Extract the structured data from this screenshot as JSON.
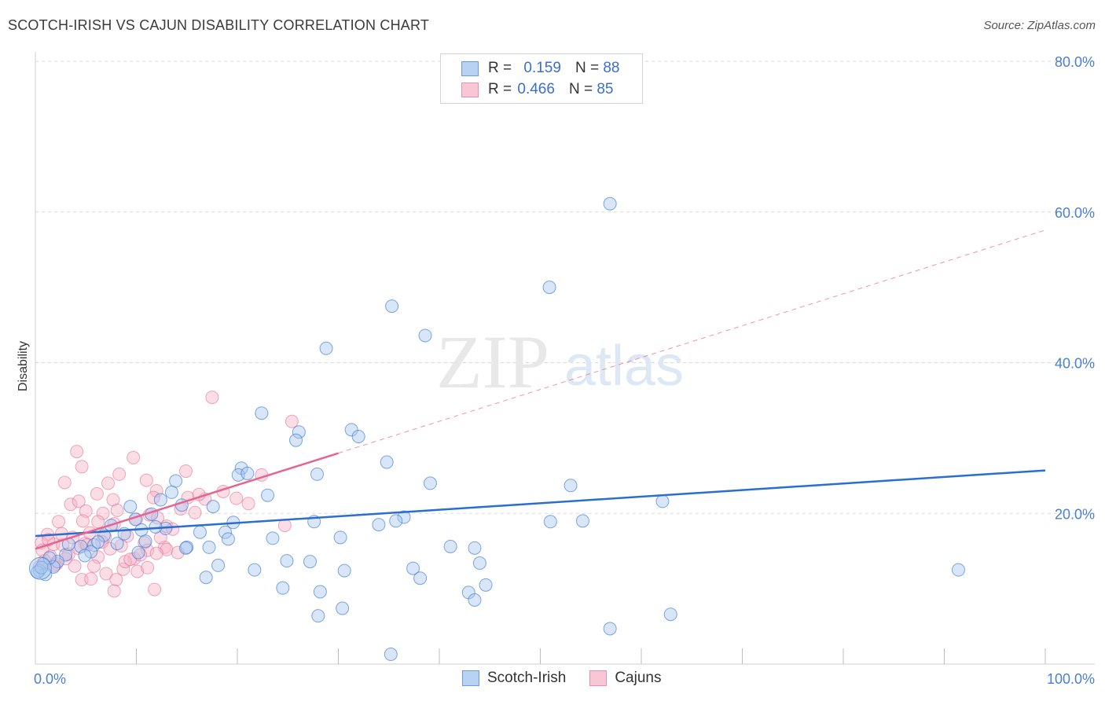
{
  "header": {
    "title": "SCOTCH-IRISH VS CAJUN DISABILITY CORRELATION CHART",
    "source": "Source: ZipAtlas.com"
  },
  "colors": {
    "blue": "#2a6fd0",
    "blue_fill": "#a8c8f0",
    "pink": "#e8648e",
    "pink_fill": "#f6b4c8",
    "grid": "#dddddd",
    "tick_text": "#4a7fd1"
  },
  "legend": {
    "rows": [
      {
        "r_label": "R =",
        "r_value": "0.159",
        "n_label": "N =",
        "n_value": "88"
      },
      {
        "r_label": "R =",
        "r_value": "0.466",
        "n_label": "N =",
        "n_value": "85"
      }
    ]
  },
  "bottom_legend": [
    "Scotch-Irish",
    "Cajuns"
  ],
  "watermark": {
    "zip": "ZIP",
    "atlas": "atlas"
  },
  "chart_data": {
    "type": "scatter",
    "title": "SCOTCH-IRISH VS CAJUN DISABILITY CORRELATION CHART",
    "xlabel": "",
    "ylabel": "Disability",
    "xlim": [
      0,
      100
    ],
    "ylim": [
      0,
      80
    ],
    "x_tick_labels": [
      "0.0%",
      "100.0%"
    ],
    "y_ticks": [
      20,
      40,
      60,
      80
    ],
    "y_tick_labels": [
      "20.0%",
      "40.0%",
      "60.0%",
      "80.0%"
    ],
    "grid": true,
    "legend": "top-center",
    "series": [
      {
        "name": "Scotch-Irish",
        "R": 0.159,
        "N": 88,
        "trend": {
          "x0": 0,
          "y0": 17.0,
          "x1": 100,
          "y1": 25.7,
          "dashed_from": null
        },
        "points": [
          [
            56.9,
            61.1
          ],
          [
            50.9,
            50.0
          ],
          [
            35.3,
            47.5
          ],
          [
            38.6,
            43.6
          ],
          [
            28.8,
            41.9
          ],
          [
            22.4,
            33.3
          ],
          [
            31.3,
            31.1
          ],
          [
            26.1,
            30.8
          ],
          [
            32.0,
            30.2
          ],
          [
            25.8,
            29.7
          ],
          [
            34.8,
            26.8
          ],
          [
            20.4,
            26.0
          ],
          [
            20.1,
            25.1
          ],
          [
            21.0,
            25.3
          ],
          [
            27.9,
            25.2
          ],
          [
            13.9,
            24.3
          ],
          [
            39.1,
            24.0
          ],
          [
            53.0,
            23.7
          ],
          [
            13.5,
            22.8
          ],
          [
            23.0,
            22.4
          ],
          [
            12.4,
            21.8
          ],
          [
            62.1,
            21.6
          ],
          [
            14.5,
            21.1
          ],
          [
            9.4,
            20.9
          ],
          [
            17.6,
            20.9
          ],
          [
            11.5,
            19.9
          ],
          [
            9.9,
            19.2
          ],
          [
            36.5,
            19.5
          ],
          [
            35.7,
            19.0
          ],
          [
            27.6,
            18.9
          ],
          [
            19.6,
            18.8
          ],
          [
            51.0,
            18.9
          ],
          [
            54.2,
            19.0
          ],
          [
            34.0,
            18.5
          ],
          [
            7.5,
            18.4
          ],
          [
            12.9,
            18.0
          ],
          [
            10.5,
            17.8
          ],
          [
            16.3,
            17.5
          ],
          [
            18.8,
            17.5
          ],
          [
            6.8,
            17.1
          ],
          [
            23.5,
            16.7
          ],
          [
            30.2,
            16.8
          ],
          [
            19.1,
            16.6
          ],
          [
            10.9,
            16.3
          ],
          [
            8.1,
            16.0
          ],
          [
            5.8,
            15.8
          ],
          [
            4.5,
            15.6
          ],
          [
            17.2,
            15.5
          ],
          [
            15.0,
            15.5
          ],
          [
            14.9,
            15.4
          ],
          [
            41.1,
            15.6
          ],
          [
            43.5,
            15.4
          ],
          [
            5.5,
            14.9
          ],
          [
            10.2,
            14.8
          ],
          [
            3.0,
            14.5
          ],
          [
            4.9,
            14.4
          ],
          [
            24.9,
            13.7
          ],
          [
            27.2,
            13.6
          ],
          [
            44.0,
            13.4
          ],
          [
            2.2,
            13.6
          ],
          [
            0.8,
            13.3
          ],
          [
            18.1,
            13.1
          ],
          [
            1.8,
            12.9
          ],
          [
            37.4,
            12.7
          ],
          [
            30.6,
            12.4
          ],
          [
            21.7,
            12.5
          ],
          [
            0.4,
            12.4
          ],
          [
            91.4,
            12.5
          ],
          [
            38.1,
            11.4
          ],
          [
            1.0,
            11.9
          ],
          [
            16.9,
            11.5
          ],
          [
            44.6,
            10.5
          ],
          [
            24.5,
            10.1
          ],
          [
            28.2,
            9.6
          ],
          [
            42.9,
            9.5
          ],
          [
            43.5,
            8.5
          ],
          [
            30.4,
            7.4
          ],
          [
            28.0,
            6.4
          ],
          [
            62.9,
            6.6
          ],
          [
            56.9,
            4.7
          ],
          [
            35.2,
            1.3
          ],
          [
            0.2,
            12.2
          ],
          [
            0.6,
            12.8
          ],
          [
            1.4,
            14.1
          ],
          [
            3.3,
            15.9
          ],
          [
            6.2,
            16.2
          ],
          [
            8.8,
            17.3
          ],
          [
            11.9,
            18.2
          ]
        ]
      },
      {
        "name": "Cajuns",
        "R": 0.466,
        "N": 85,
        "trend": {
          "x0": 0,
          "y0": 15.3,
          "x1": 100,
          "y1": 57.6,
          "solid_until_x": 30
        },
        "points": [
          [
            17.5,
            35.4
          ],
          [
            25.4,
            32.2
          ],
          [
            4.1,
            28.2
          ],
          [
            9.7,
            27.4
          ],
          [
            4.6,
            26.2
          ],
          [
            8.3,
            25.2
          ],
          [
            14.9,
            25.6
          ],
          [
            11.0,
            24.4
          ],
          [
            22.4,
            25.1
          ],
          [
            2.9,
            24.1
          ],
          [
            7.2,
            24.0
          ],
          [
            12.0,
            23.0
          ],
          [
            6.1,
            22.6
          ],
          [
            15.1,
            22.1
          ],
          [
            11.7,
            22.1
          ],
          [
            3.5,
            21.2
          ],
          [
            4.3,
            21.6
          ],
          [
            7.7,
            21.8
          ],
          [
            16.8,
            21.9
          ],
          [
            8.1,
            20.4
          ],
          [
            6.7,
            20.0
          ],
          [
            5.0,
            20.3
          ],
          [
            11.3,
            19.8
          ],
          [
            10.0,
            19.2
          ],
          [
            4.7,
            19.0
          ],
          [
            12.1,
            19.4
          ],
          [
            2.3,
            18.9
          ],
          [
            6.2,
            18.9
          ],
          [
            13.0,
            18.3
          ],
          [
            7.8,
            18.6
          ],
          [
            24.7,
            18.4
          ],
          [
            1.2,
            17.2
          ],
          [
            5.4,
            17.4
          ],
          [
            9.1,
            17.0
          ],
          [
            3.7,
            16.8
          ],
          [
            6.9,
            16.9
          ],
          [
            10.8,
            16.1
          ],
          [
            0.6,
            16.1
          ],
          [
            1.8,
            15.9
          ],
          [
            4.9,
            16.0
          ],
          [
            2.7,
            15.8
          ],
          [
            8.5,
            15.7
          ],
          [
            12.8,
            15.5
          ],
          [
            13.0,
            15.2
          ],
          [
            11.1,
            15.1
          ],
          [
            3.3,
            14.6
          ],
          [
            1.5,
            14.3
          ],
          [
            6.2,
            14.2
          ],
          [
            9.8,
            14.0
          ],
          [
            14.1,
            14.8
          ],
          [
            0.9,
            13.7
          ],
          [
            2.1,
            13.3
          ],
          [
            5.8,
            13.0
          ],
          [
            8.7,
            12.6
          ],
          [
            0.4,
            12.9
          ],
          [
            3.9,
            13.0
          ],
          [
            7.0,
            12.0
          ],
          [
            10.1,
            12.3
          ],
          [
            11.1,
            12.8
          ],
          [
            12.0,
            14.7
          ],
          [
            4.6,
            11.2
          ],
          [
            5.5,
            11.3
          ],
          [
            8.0,
            11.2
          ],
          [
            7.8,
            9.7
          ],
          [
            11.8,
            9.9
          ],
          [
            0.7,
            15.1
          ],
          [
            1.3,
            16.5
          ],
          [
            2.6,
            17.3
          ],
          [
            3.0,
            14.0
          ],
          [
            4.2,
            15.4
          ],
          [
            5.1,
            15.8
          ],
          [
            6.6,
            16.2
          ],
          [
            7.4,
            15.3
          ],
          [
            8.9,
            13.6
          ],
          [
            9.4,
            13.9
          ],
          [
            10.4,
            14.5
          ],
          [
            12.4,
            16.8
          ],
          [
            13.6,
            17.9
          ],
          [
            14.4,
            20.6
          ],
          [
            15.8,
            20.1
          ],
          [
            16.2,
            22.5
          ],
          [
            18.6,
            22.9
          ],
          [
            19.9,
            22.0
          ],
          [
            21.1,
            21.3
          ],
          [
            1.9,
            13.1
          ]
        ]
      }
    ]
  }
}
